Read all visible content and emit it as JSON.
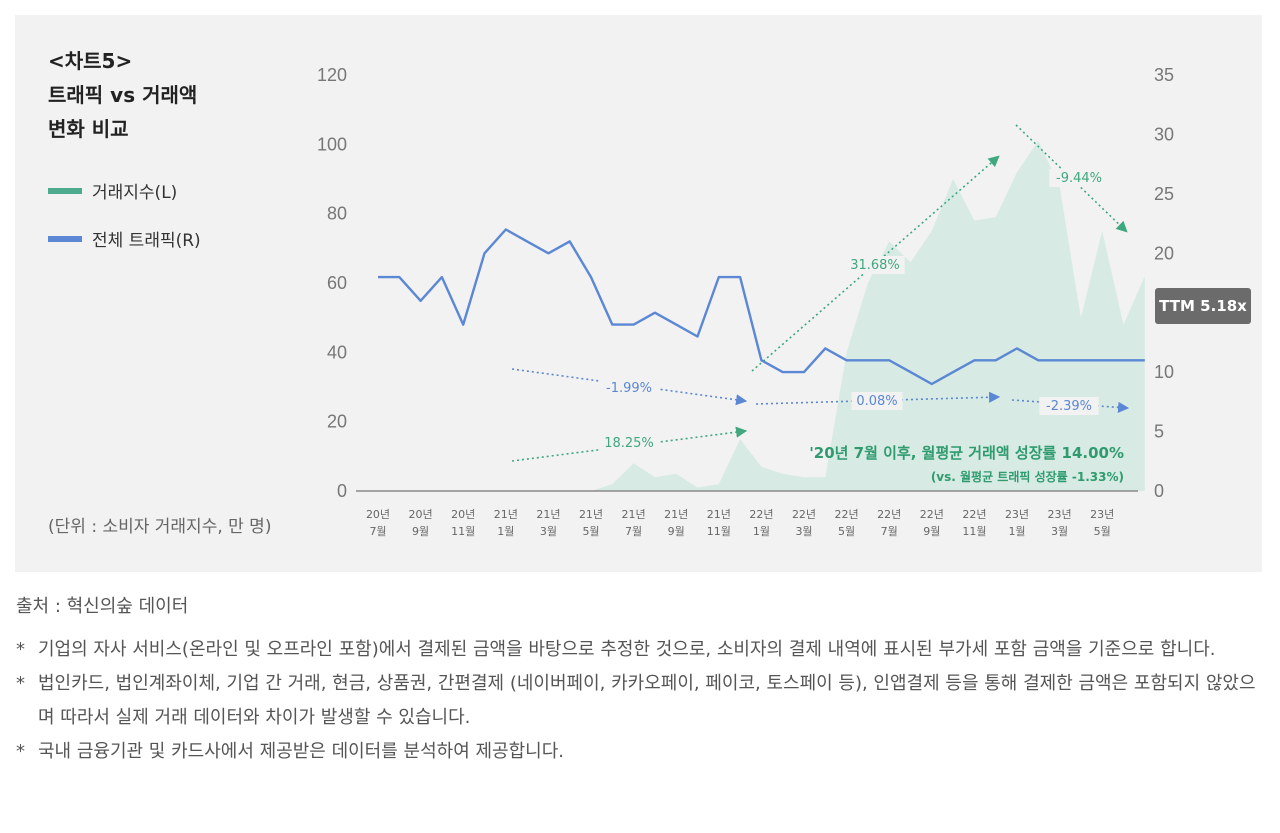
{
  "header": {
    "title": "<차트5>\n트래픽 vs 거래액\n변화 비교"
  },
  "legend": [
    {
      "label": "거래지수(L)",
      "color": "#4daa8c"
    },
    {
      "label": "전체 트래픽(R)",
      "color": "#5b87d4"
    }
  ],
  "unit_label": "(단위 : 소비자 거래지수, 만 명)",
  "ttm_badge": "TTM 5.18x",
  "source": "출처 : 혁신의숲 데이터",
  "notes": [
    "기업의 자사 서비스(온라인 및 오프라인 포함)에서 결제된 금액을 바탕으로 추정한 것으로, 소비자의 결제 내역에 표시된 부가세 포함 금액을 기준으로 합니다.",
    "법인카드, 법인계좌이체, 기업 간 거래, 현금, 상품권, 간편결제 (네이버페이, 카카오페이, 페이코, 토스페이 등), 인앱결제 등을 통해 결제한 금액은 포함되지 않았으며 따라서 실제 거래 데이터와 차이가 발생할 수 있습니다.",
    "국내 금융기관 및 카드사에서 제공받은 데이터를 분석하여 제공합니다."
  ],
  "chart_data": {
    "type": "area+line",
    "title": "트래픽 vs 거래액 변화 비교",
    "left_axis": {
      "label": "거래지수",
      "range": [
        0,
        120
      ],
      "ticks": [
        "0",
        "20",
        "40",
        "60",
        "80",
        "100",
        "120"
      ]
    },
    "right_axis": {
      "label": "전체 트래픽",
      "range": [
        0,
        35
      ],
      "ticks": [
        "0",
        "5",
        "10",
        "15",
        "20",
        "25",
        "30",
        "35"
      ]
    },
    "months": [
      "2020-07",
      "2020-08",
      "2020-09",
      "2020-10",
      "2020-11",
      "2020-12",
      "2021-01",
      "2021-02",
      "2021-03",
      "2021-04",
      "2021-05",
      "2021-06",
      "2021-07",
      "2021-08",
      "2021-09",
      "2021-10",
      "2021-11",
      "2021-12",
      "2022-01",
      "2022-02",
      "2022-03",
      "2022-04",
      "2022-05",
      "2022-06",
      "2022-07",
      "2022-08",
      "2022-09",
      "2022-10",
      "2022-11",
      "2022-12",
      "2023-01",
      "2023-02",
      "2023-03",
      "2023-04",
      "2023-05",
      "2023-06",
      "2023-07"
    ],
    "x_tick_labels": [
      [
        "20년",
        "7월"
      ],
      [
        "20년",
        "9월"
      ],
      [
        "20년",
        "11월"
      ],
      [
        "21년",
        "1월"
      ],
      [
        "21년",
        "3월"
      ],
      [
        "21년",
        "5월"
      ],
      [
        "21년",
        "7월"
      ],
      [
        "21년",
        "9월"
      ],
      [
        "21년",
        "11월"
      ],
      [
        "22년",
        "1월"
      ],
      [
        "22년",
        "3월"
      ],
      [
        "22년",
        "5월"
      ],
      [
        "22년",
        "7월"
      ],
      [
        "22년",
        "9월"
      ],
      [
        "22년",
        "11월"
      ],
      [
        "23년",
        "1월"
      ],
      [
        "23년",
        "3월"
      ],
      [
        "23년",
        "5월"
      ]
    ],
    "series": [
      {
        "name": "거래지수(L)",
        "type": "area",
        "axis": "left",
        "color": "#d7ebe4",
        "values": [
          0,
          0,
          0,
          0,
          0,
          0,
          0,
          0,
          0,
          0,
          0,
          2,
          8,
          4,
          5,
          1,
          2,
          15,
          7,
          5,
          4,
          4,
          40,
          60,
          72,
          66,
          75,
          90,
          78,
          79,
          92,
          101,
          88,
          50,
          75,
          48,
          62
        ]
      },
      {
        "name": "전체 트래픽(R)",
        "type": "line",
        "axis": "right",
        "color": "#5b87d4",
        "values": [
          18,
          18,
          16,
          18,
          14,
          20,
          22,
          21,
          20,
          21,
          18,
          14,
          14,
          15,
          14,
          13,
          18,
          18,
          11,
          10,
          10,
          12,
          11,
          11,
          11,
          10,
          9,
          10,
          11,
          11,
          12,
          11,
          11,
          11,
          11,
          11,
          11
        ]
      }
    ],
    "annotations": [
      {
        "text": "-1.99%",
        "color": "#5b87d4"
      },
      {
        "text": "18.25%",
        "color": "#3fa87e"
      },
      {
        "text": "31.68%",
        "color": "#3fa87e"
      },
      {
        "text": "0.08%",
        "color": "#5b87d4"
      },
      {
        "text": "-9.44%",
        "color": "#3fa87e"
      },
      {
        "text": "-2.39%",
        "color": "#5b87d4"
      }
    ],
    "callout_main": "'20년 7월 이후, 월평균 거래액 성장률 14.00%",
    "callout_sub": "(vs. 월평균 트래픽 성장률 -1.33%)"
  }
}
